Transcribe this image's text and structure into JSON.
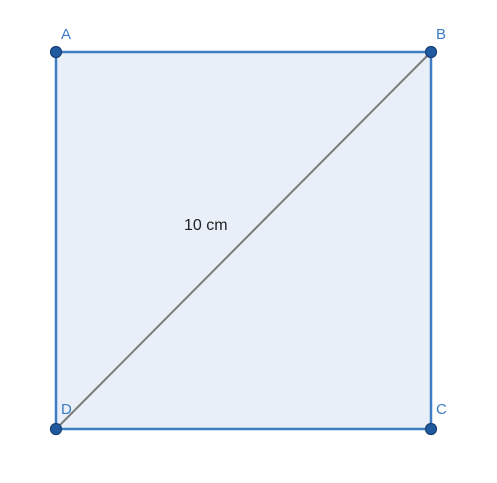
{
  "figure": {
    "shape": "square",
    "vertices": [
      {
        "id": "A",
        "label": "A"
      },
      {
        "id": "B",
        "label": "B"
      },
      {
        "id": "C",
        "label": "C"
      },
      {
        "id": "D",
        "label": "D"
      }
    ],
    "diagonal": {
      "from": "D",
      "to": "B",
      "label": "10 cm"
    }
  },
  "colors": {
    "edge": "#3d7dc4",
    "fill": "#e8eff8",
    "vertex_point": "#1f5aa0",
    "vertex_label": "#3d7dc4",
    "diagonal": "#7b7b7b",
    "diagonal_label": "#222222"
  }
}
